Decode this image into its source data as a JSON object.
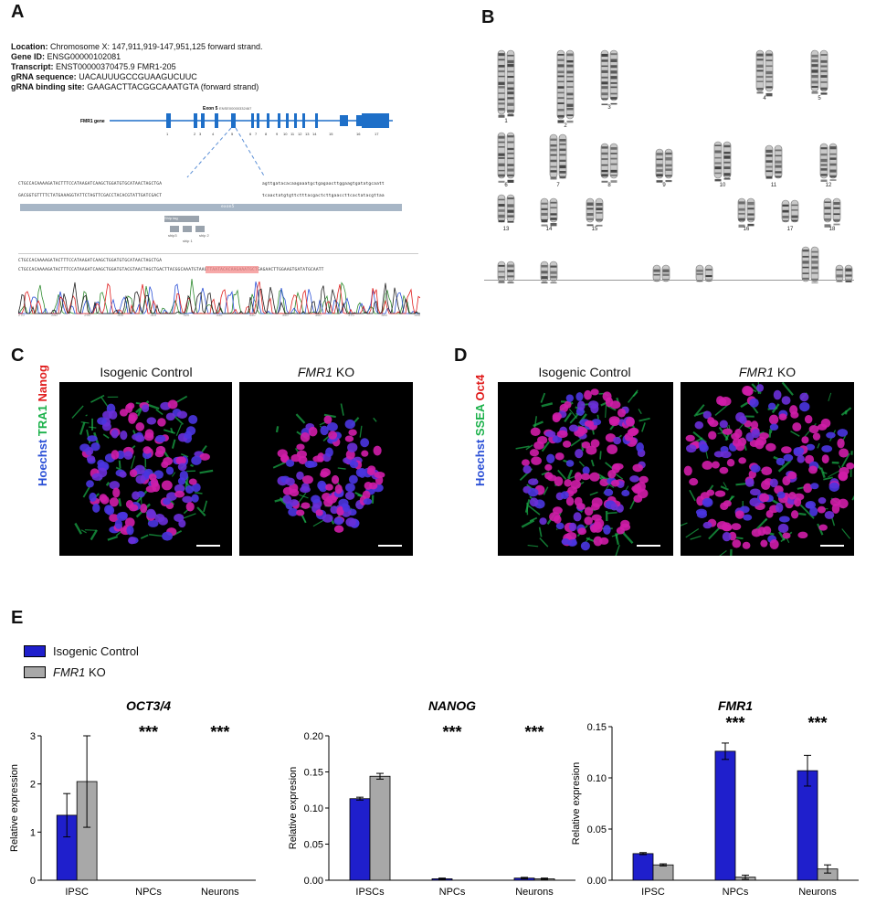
{
  "colors": {
    "control": "#1f1fcc",
    "ko": "#a8a8a8",
    "hoechst": "#2a4fd6",
    "green": "#1bb14a",
    "red": "#e01b1b"
  },
  "panelA": {
    "letter": "A",
    "info": [
      {
        "label": "Location:",
        "value": "Chromosome X: 147,911,919-147,951,125 forward strand."
      },
      {
        "label": "Gene ID:",
        "value": "ENSG00000102081"
      },
      {
        "label": "Transcript:",
        "value": "ENST00000370475.9 FMR1-205"
      },
      {
        "label": "gRNA sequence:",
        "value": "UACAUUUGCCGUAAGUCUUC"
      },
      {
        "label": "gRNA binding site:",
        "value": "GAAGACTTACGGCAAATGTA (forward strand)"
      }
    ],
    "exon_label": "Exon 5",
    "exon_id": "ENSE00000332467",
    "gene_label": "FMR1 gene",
    "exon_numbers": [
      "1",
      "2",
      "3",
      "4",
      "5",
      "6",
      "7",
      "8",
      "9",
      "10",
      "11",
      "12",
      "13",
      "14",
      "15",
      "16",
      "17"
    ],
    "seq_top1": "CTGCCACAAAAGATACTTTCCATAAGATCAAGCTGGATGTGCATAACTAGCTGA",
    "seq_top2": "GACGGTGTTTTCTATGAAAGGTATTCTAGTTCGACCTACACGTATTGATCGACT",
    "seq_right1": "agttgatacacaagaaatgctgagaacttggaagtgatatgcaatt",
    "seq_right2": "tcaactatgtgttctttacgactcttgaaccttcactatacgttaa",
    "bar_label": "exon5",
    "boxes": [
      "Ship tag",
      "ship3",
      "ship 2",
      "ship 1"
    ],
    "seq_bottom1": "CTGCCACAAAAGATACTTTCCATAAGATCAAGCTGGATGTGCATAACTAGCTGA",
    "seq_bottom2": "CTGCCACAAAAGATACTTTCCATAAGATCAAGCTGGATGTACGTAACTAGCTGACTTACGGCAAATGTAAGTTAATACACAAGAAATGCTGAGAACTTGGAAGTGATATGCAATT",
    "trace_ticks": [
      "270",
      "280",
      "290",
      "300",
      "310",
      "320",
      "330",
      "340",
      "350",
      "360",
      "370",
      "380",
      "390"
    ]
  },
  "panelB": {
    "letter": "B",
    "row1": [
      "1",
      "2",
      "3",
      "4",
      "5"
    ],
    "row2": [
      "6",
      "7",
      "8",
      "9",
      "10",
      "11",
      "12"
    ],
    "row3": [
      "13",
      "14",
      "15",
      "16",
      "17",
      "18"
    ],
    "row4": [
      "19",
      "20",
      "21",
      "22",
      "X",
      "Y"
    ]
  },
  "panelC": {
    "letter": "C",
    "titles": [
      "Isogenic Control",
      "FMR1 KO"
    ],
    "ko_gene": "FMR1",
    "ko_suffix": " KO",
    "stain_labels": [
      "Hoechst",
      "TRA1",
      "Nanog"
    ]
  },
  "panelD": {
    "letter": "D",
    "titles": [
      "Isogenic Control",
      "FMR1 KO"
    ],
    "ko_gene": "FMR1",
    "ko_suffix": " KO",
    "stain_labels": [
      "Hoechst",
      "SSEA",
      "Oct4"
    ]
  },
  "panelE": {
    "letter": "E",
    "legend": [
      {
        "label": "Isogenic Control",
        "italic_part": "",
        "color": "#1f1fcc"
      },
      {
        "label": " KO",
        "italic_part": "FMR1",
        "color": "#a8a8a8"
      }
    ]
  },
  "chart_data": [
    {
      "type": "bar",
      "title": "OCT3/4",
      "ylabel": "Relative expression",
      "categories": [
        "IPSC",
        "NPCs",
        "Neurons"
      ],
      "ylim": [
        0,
        3
      ],
      "yticks": [
        "0",
        "1",
        "2",
        "3"
      ],
      "series": [
        {
          "name": "Isogenic Control",
          "values": [
            1.35,
            0,
            0
          ],
          "errors": [
            0.45,
            0,
            0
          ]
        },
        {
          "name": "FMR1 KO",
          "values": [
            2.05,
            0,
            0
          ],
          "errors": [
            0.95,
            0,
            0
          ]
        }
      ],
      "significance": [
        "",
        "***",
        "***"
      ]
    },
    {
      "type": "bar",
      "title": "NANOG",
      "ylabel": "Relative expresion",
      "categories": [
        "IPSCs",
        "NPCs",
        "Neurons"
      ],
      "ylim": [
        0,
        0.2
      ],
      "yticks": [
        "0.00",
        "0.05",
        "0.10",
        "0.15",
        "0.20"
      ],
      "series": [
        {
          "name": "Isogenic Control",
          "values": [
            0.113,
            0.002,
            0.003
          ],
          "errors": [
            0.002,
            0.001,
            0.001
          ]
        },
        {
          "name": "FMR1 KO",
          "values": [
            0.144,
            0.0,
            0.002
          ],
          "errors": [
            0.004,
            0.0,
            0.001
          ]
        }
      ],
      "significance": [
        "",
        "***",
        "***"
      ]
    },
    {
      "type": "bar",
      "title": "FMR1",
      "ylabel": "Relative expresion",
      "categories": [
        "IPSC",
        "NPCs",
        "Neurons"
      ],
      "ylim": [
        0,
        0.15
      ],
      "yticks": [
        "0.00",
        "0.05",
        "0.10",
        "0.15"
      ],
      "series": [
        {
          "name": "Isogenic Control",
          "values": [
            0.026,
            0.126,
            0.107
          ],
          "errors": [
            0.001,
            0.008,
            0.015
          ]
        },
        {
          "name": "FMR1 KO",
          "values": [
            0.015,
            0.003,
            0.011
          ],
          "errors": [
            0.001,
            0.002,
            0.004
          ]
        }
      ],
      "significance": [
        "",
        "***",
        "***"
      ]
    }
  ]
}
